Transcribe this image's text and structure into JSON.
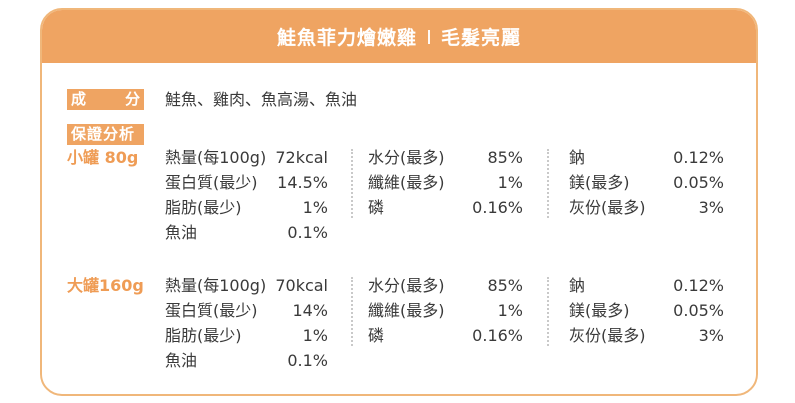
{
  "header": {
    "product_name": "鮭魚菲力燴嫩雞",
    "tagline": "毛髮亮麗"
  },
  "ingredients": {
    "label_char1": "成",
    "label_char2": "分",
    "text": "鮭魚、雞肉、魚高湯、魚油"
  },
  "guarantee": {
    "label": "保證分析",
    "groups": [
      {
        "size": "小罐 80g",
        "col1": [
          {
            "name": "熱量(每100g)",
            "value": "72kcal"
          },
          {
            "name": "蛋白質(最少)",
            "value": "14.5%"
          },
          {
            "name": "脂肪(最少)",
            "value": "1%"
          },
          {
            "name": "魚油",
            "value": "0.1%"
          }
        ],
        "col2": [
          {
            "name": "水分(最多)",
            "value": "85%"
          },
          {
            "name": "纖維(最多)",
            "value": "1%"
          },
          {
            "name": "磷",
            "value": "0.16%"
          }
        ],
        "col3": [
          {
            "name": "鈉",
            "value": "0.12%"
          },
          {
            "name": "鎂(最多)",
            "value": "0.05%"
          },
          {
            "name": "灰份(最多)",
            "value": "3%"
          }
        ]
      },
      {
        "size": "大罐160g",
        "col1": [
          {
            "name": "熱量(每100g)",
            "value": "70kcal"
          },
          {
            "name": "蛋白質(最少)",
            "value": "14%"
          },
          {
            "name": "脂肪(最少)",
            "value": "1%"
          },
          {
            "name": "魚油",
            "value": "0.1%"
          }
        ],
        "col2": [
          {
            "name": "水分(最多)",
            "value": "85%"
          },
          {
            "name": "纖維(最多)",
            "value": "1%"
          },
          {
            "name": "磷",
            "value": "0.16%"
          }
        ],
        "col3": [
          {
            "name": "鈉",
            "value": "0.12%"
          },
          {
            "name": "鎂(最多)",
            "value": "0.05%"
          },
          {
            "name": "灰份(最多)",
            "value": "3%"
          }
        ]
      }
    ]
  },
  "colors": {
    "accent": "#efa462",
    "border": "#f0b77a",
    "size_label": "#ef9c55",
    "text": "#3a3a3a"
  }
}
